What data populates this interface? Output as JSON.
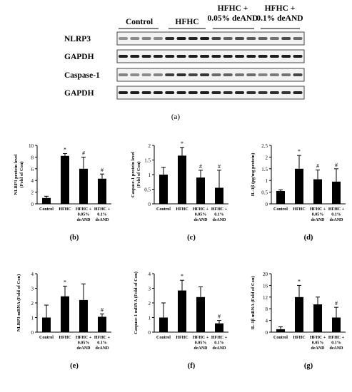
{
  "blot": {
    "groups": [
      "Control",
      "HFHC",
      "HFHC +\n0.05% deAND",
      "HFHC +\n0.1% deAND"
    ],
    "rows": [
      "NLRP3",
      "GAPDH",
      "Caspase-1",
      "GAPDH"
    ],
    "panel_label": "(a)"
  },
  "chart_data": [
    {
      "type": "bar",
      "panel_label": "(b)",
      "ylabel": "NLRP3 protein level\n(Fold of Con)",
      "ylim": [
        0,
        10
      ],
      "yticks": [
        0,
        2,
        4,
        6,
        8,
        10
      ],
      "categories": [
        "Control",
        "HFHC",
        "HFHC +\n0.05%\ndeAND",
        "HFHC +\n0.1%\ndeAND"
      ],
      "values": [
        1.0,
        8.2,
        6.0,
        4.3
      ],
      "errors": [
        0.3,
        0.4,
        2.0,
        0.8
      ],
      "annotations": [
        "",
        "*",
        "#",
        "#"
      ]
    },
    {
      "type": "bar",
      "panel_label": "(c)",
      "ylabel": "Caspase-1 protein level\n(Fold of Con)",
      "ylim": [
        0,
        2
      ],
      "yticks": [
        0,
        0.5,
        1,
        1.5,
        2
      ],
      "categories": [
        "Control",
        "HFHC",
        "HFHC +\n0.05%\ndeAND",
        "HFHC +\n0.1%\ndeAND"
      ],
      "values": [
        1.0,
        1.65,
        0.9,
        0.55
      ],
      "errors": [
        0.25,
        0.28,
        0.25,
        0.6
      ],
      "annotations": [
        "",
        "*",
        "#",
        "#"
      ]
    },
    {
      "type": "bar",
      "panel_label": "(d)",
      "ylabel": "IL-1β (pg/mg protein)",
      "ylim": [
        0,
        2.5
      ],
      "yticks": [
        0,
        0.5,
        1,
        1.5,
        2,
        2.5
      ],
      "categories": [
        "Control",
        "HFHC",
        "HFHC +\n0.05%\ndeAND",
        "HFHC +\n0.1%\ndeAND"
      ],
      "values": [
        0.55,
        1.5,
        1.05,
        0.95
      ],
      "errors": [
        0.05,
        0.57,
        0.4,
        0.55
      ],
      "annotations": [
        "",
        "*",
        "#",
        "#"
      ]
    },
    {
      "type": "bar",
      "panel_label": "(e)",
      "ylabel": "NLRP3 mRNA (Fold of Con)",
      "ylim": [
        0,
        4
      ],
      "yticks": [
        0,
        1,
        2,
        3,
        4
      ],
      "categories": [
        "Control",
        "HFHC",
        "HFHC +\n0.05%\ndeAND",
        "HFHC +\n0.1%\ndeAND"
      ],
      "values": [
        1.0,
        2.45,
        2.2,
        1.05
      ],
      "errors": [
        0.85,
        0.7,
        1.1,
        0.2
      ],
      "annotations": [
        "",
        "*",
        "",
        "#"
      ]
    },
    {
      "type": "bar",
      "panel_label": "(f)",
      "ylabel": "Caspase-1 mRNA (Fold of Con)",
      "ylim": [
        0,
        4
      ],
      "yticks": [
        0,
        1,
        2,
        3,
        4
      ],
      "categories": [
        "Control",
        "HFHC",
        "HFHC +\n0.05%\ndeAND",
        "HFHC +\n0.1%\ndeAND"
      ],
      "values": [
        1.0,
        2.85,
        2.4,
        0.6
      ],
      "errors": [
        1.0,
        0.7,
        0.7,
        0.2
      ],
      "annotations": [
        "",
        "*",
        "",
        "#"
      ]
    },
    {
      "type": "bar",
      "panel_label": "(g)",
      "ylabel": "IL-1β mRNA (Fold of Con)",
      "ylim": [
        0,
        20
      ],
      "yticks": [
        0,
        4,
        8,
        12,
        16,
        20
      ],
      "categories": [
        "Control",
        "HFHC",
        "HFHC +\n0.05%\ndeAND",
        "HFHC +\n0.1%\ndeAND"
      ],
      "values": [
        1.0,
        12.0,
        9.5,
        5.0
      ],
      "errors": [
        0.8,
        4.0,
        2.5,
        3.5
      ],
      "annotations": [
        "",
        "*",
        "",
        "#"
      ]
    }
  ]
}
